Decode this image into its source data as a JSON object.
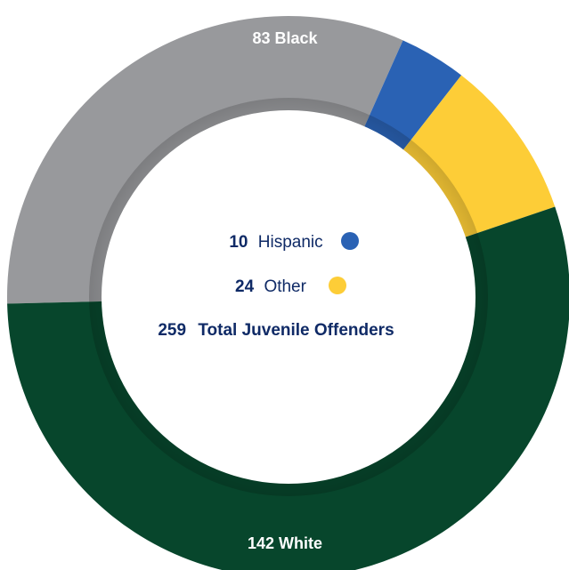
{
  "chart_data": {
    "type": "pie",
    "style": "donut",
    "total": 259,
    "total_label": "Total Juvenile Offenders",
    "slices": [
      {
        "label": "Black",
        "value": 83,
        "color": "#98999c"
      },
      {
        "label": "Hispanic",
        "value": 10,
        "color": "#2a62b4"
      },
      {
        "label": "Other",
        "value": 24,
        "color": "#fdcd37"
      },
      {
        "label": "White",
        "value": 142,
        "color": "#07462c"
      }
    ],
    "legend": [
      {
        "value": 10,
        "label": "Hispanic",
        "color": "#2a62b4"
      },
      {
        "value": 24,
        "label": "Other",
        "color": "#fdcd37"
      }
    ],
    "slice_labels": [
      {
        "value": 83,
        "label": "Black"
      },
      {
        "value": 142,
        "label": "White"
      }
    ]
  }
}
